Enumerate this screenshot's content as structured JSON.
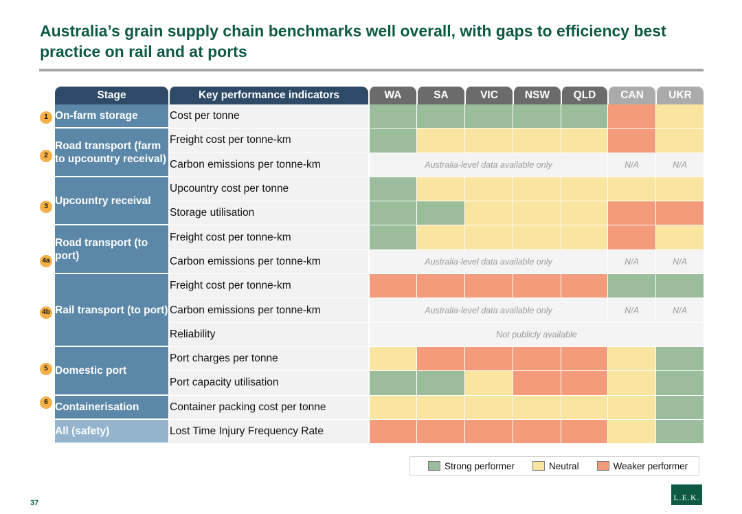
{
  "title": "Australia’s grain supply chain benchmarks well overall, with gaps to efficiency best practice on rail and at ports",
  "page_number": "37",
  "logo_text": "L.E.K.",
  "colors": {
    "strong": "#9bbd9b",
    "neutral": "#f9e4a0",
    "weaker": "#f49b7c",
    "title": "#0e5a45"
  },
  "headers": {
    "stage": "Stage",
    "kpi": "Key performance indicators",
    "regions": [
      "WA",
      "SA",
      "VIC",
      "NSW",
      "QLD",
      "CAN",
      "UKR"
    ]
  },
  "badges": [
    "1",
    "2",
    "3",
    "4a",
    "4b",
    "5",
    "6"
  ],
  "stages": [
    "On-farm storage",
    "Road transport (farm to upcountry receival)",
    "Upcountry receival",
    "Road transport (to port)",
    "Rail transport (to port)",
    "Domestic port",
    "Containerisation",
    "All (safety)"
  ],
  "kpis": [
    "Cost per tonne",
    "Freight cost per tonne-km",
    "Carbon emissions per tonne-km",
    "Upcountry cost per tonne",
    "Storage utilisation",
    "Freight cost per tonne-km",
    "Carbon emissions per tonne-km",
    "Freight cost per tonne-km",
    "Carbon emissions per tonne-km",
    "Reliability",
    "Port charges per tonne",
    "Port capacity utilisation",
    "Container packing cost per tonne",
    "Lost Time Injury Frequency Rate"
  ],
  "notes": {
    "australia_only": "Australia-level data available only",
    "na": "N/A",
    "not_public": "Not publicly available"
  },
  "ratings": [
    [
      "strong",
      "strong",
      "strong",
      "strong",
      "strong",
      "weaker",
      "neutral"
    ],
    [
      "strong",
      "neutral",
      "neutral",
      "neutral",
      "neutral",
      "weaker",
      "neutral"
    ],
    [
      "australia-only",
      "na",
      "na"
    ],
    [
      "strong",
      "neutral",
      "neutral",
      "neutral",
      "neutral",
      "neutral",
      "neutral"
    ],
    [
      "strong",
      "strong",
      "neutral",
      "neutral",
      "neutral",
      "weaker",
      "weaker"
    ],
    [
      "strong",
      "neutral",
      "neutral",
      "neutral",
      "neutral",
      "weaker",
      "neutral"
    ],
    [
      "australia-only",
      "na",
      "na"
    ],
    [
      "weaker",
      "weaker",
      "weaker",
      "weaker",
      "weaker",
      "strong",
      "strong"
    ],
    [
      "australia-only",
      "na",
      "na"
    ],
    [
      "not-public"
    ],
    [
      "neutral",
      "weaker",
      "weaker",
      "weaker",
      "weaker",
      "neutral",
      "strong"
    ],
    [
      "strong",
      "strong",
      "neutral",
      "weaker",
      "weaker",
      "neutral",
      "strong"
    ],
    [
      "neutral",
      "neutral",
      "neutral",
      "neutral",
      "neutral",
      "neutral",
      "strong"
    ],
    [
      "weaker",
      "weaker",
      "weaker",
      "weaker",
      "weaker",
      "neutral",
      "strong"
    ]
  ],
  "legend": {
    "strong": "Strong performer",
    "neutral": "Neutral",
    "weaker": "Weaker performer"
  }
}
